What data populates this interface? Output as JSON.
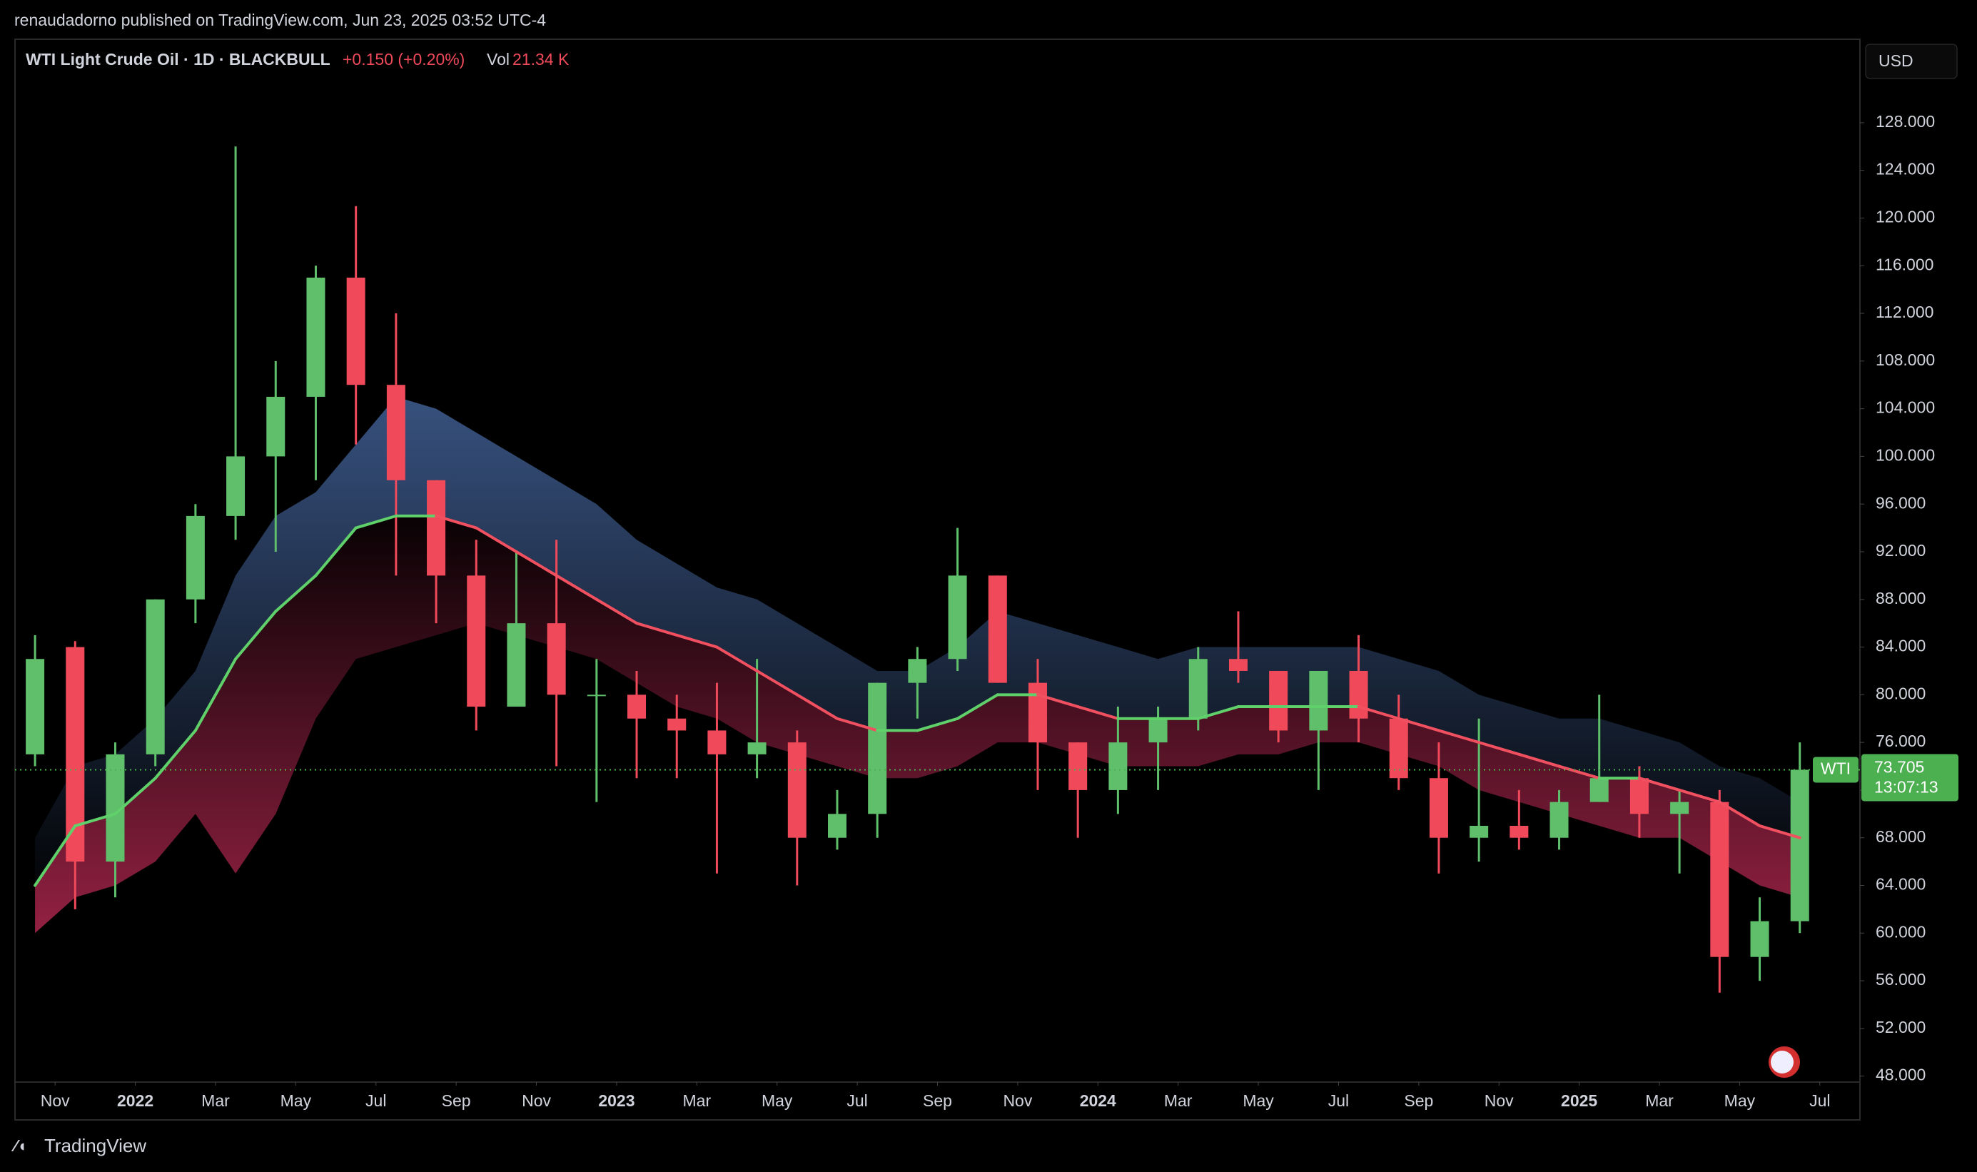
{
  "publisher": "renaudadorno published on TradingView.com, Jun 23, 2025 03:52 UTC-4",
  "footer": "TradingView",
  "chart_data": {
    "type": "candlestick",
    "title": "WTI Light Crude Oil · 1D · BLACKBULL",
    "change": "+0.150 (+0.20%)",
    "volume_label": "Vol",
    "volume": "21.34 K",
    "currency": "USD",
    "symbol": "WTI",
    "countdown": "13:07:13",
    "up_color": "#5fbf6b",
    "down_color": "#f04a5a",
    "x": [
      "2021-10",
      "2021-11",
      "2021-12",
      "2022-01",
      "2022-02",
      "2022-03",
      "2022-04",
      "2022-05",
      "2022-06",
      "2022-07",
      "2022-08",
      "2022-09",
      "2022-10",
      "2022-11",
      "2022-12",
      "2023-01",
      "2023-02",
      "2023-03",
      "2023-04",
      "2023-05",
      "2023-06",
      "2023-07",
      "2023-08",
      "2023-09",
      "2023-10",
      "2023-11",
      "2023-12",
      "2024-01",
      "2024-02",
      "2024-03",
      "2024-04",
      "2024-05",
      "2024-06",
      "2024-07",
      "2024-08",
      "2024-09",
      "2024-10",
      "2024-11",
      "2024-12",
      "2025-01",
      "2025-02",
      "2025-03",
      "2025-04",
      "2025-05",
      "2025-06"
    ],
    "open": [
      75,
      84,
      66,
      75,
      88,
      95,
      100,
      105,
      115,
      106,
      98,
      90,
      79,
      86,
      80,
      80,
      78,
      77,
      75,
      76,
      68,
      70,
      81,
      83,
      90,
      81,
      76,
      72,
      76,
      78,
      83,
      82,
      77,
      82,
      78,
      73,
      68,
      69,
      68,
      71,
      73,
      70,
      71,
      58,
      61
    ],
    "high": [
      85,
      84.5,
      76,
      88,
      96,
      126,
      108,
      116,
      121,
      112,
      98,
      93,
      92,
      93,
      83,
      82,
      80,
      81,
      83,
      77,
      72,
      81,
      84,
      94,
      90,
      83,
      76,
      79,
      79,
      84,
      87,
      82,
      82,
      85,
      80,
      76,
      78,
      72,
      72,
      80,
      74,
      72,
      72,
      63,
      76
    ],
    "low": [
      74,
      62,
      63,
      74,
      86,
      93,
      92,
      98,
      101,
      90,
      86,
      77,
      79,
      74,
      71,
      73,
      73,
      65,
      73,
      64,
      67,
      68,
      78,
      82,
      81,
      72,
      68,
      70,
      72,
      77,
      81,
      76,
      72,
      76,
      72,
      65,
      66,
      67,
      67,
      71,
      68,
      65,
      55,
      56,
      60
    ],
    "close": [
      83,
      66,
      75,
      88,
      95,
      100,
      105,
      115,
      106,
      98,
      90,
      79,
      86,
      80,
      80,
      78,
      77,
      75,
      76,
      68,
      70,
      81,
      83,
      90,
      81,
      76,
      72,
      76,
      78,
      83,
      82,
      77,
      82,
      78,
      73,
      68,
      69,
      68,
      71,
      73,
      70,
      71,
      58,
      61,
      73.705
    ],
    "ma": {
      "values": [
        64,
        69,
        70,
        73,
        77,
        83,
        87,
        90,
        94,
        95,
        95,
        94,
        92,
        90,
        88,
        86,
        85,
        84,
        82,
        80,
        78,
        77,
        77,
        78,
        80,
        80,
        79,
        78,
        78,
        78,
        79,
        79,
        79,
        79,
        78,
        77,
        76,
        75,
        74,
        73,
        73,
        72,
        71,
        69,
        68
      ],
      "rising_color": "#5fd06a",
      "falling_color": "#f0505f"
    },
    "upper_band": [
      68,
      74,
      75,
      78,
      82,
      90,
      95,
      97,
      101,
      105,
      104,
      102,
      100,
      98,
      96,
      93,
      91,
      89,
      88,
      86,
      84,
      82,
      82,
      84,
      87,
      86,
      85,
      84,
      83,
      84,
      84,
      84,
      84,
      84,
      83,
      82,
      80,
      79,
      78,
      78,
      77,
      76,
      74,
      73,
      71
    ],
    "lower_band": [
      60,
      63,
      64,
      66,
      70,
      65,
      70,
      78,
      83,
      84,
      85,
      86,
      85,
      84,
      83,
      81,
      79,
      78,
      76,
      75,
      74,
      73,
      73,
      74,
      76,
      76,
      75,
      74,
      74,
      74,
      75,
      75,
      76,
      76,
      75,
      74,
      72,
      71,
      70,
      69,
      68,
      68,
      66,
      64,
      63
    ],
    "upper_color": "#3d5a8c",
    "lower_color": "#a3244a",
    "price_color": "#4caf50",
    "grid": false,
    "xlim": [
      "2021-10",
      "2025-08"
    ],
    "xticks": [
      {
        "value": "2021-11",
        "label": "Nov"
      },
      {
        "value": "2022-01",
        "label": "2022"
      },
      {
        "value": "2022-03",
        "label": "Mar"
      },
      {
        "value": "2022-05",
        "label": "May"
      },
      {
        "value": "2022-07",
        "label": "Jul"
      },
      {
        "value": "2022-09",
        "label": "Sep"
      },
      {
        "value": "2022-11",
        "label": "Nov"
      },
      {
        "value": "2023-01",
        "label": "2023"
      },
      {
        "value": "2023-03",
        "label": "Mar"
      },
      {
        "value": "2023-05",
        "label": "May"
      },
      {
        "value": "2023-07",
        "label": "Jul"
      },
      {
        "value": "2023-09",
        "label": "Sep"
      },
      {
        "value": "2023-11",
        "label": "Nov"
      },
      {
        "value": "2024-01",
        "label": "2024"
      },
      {
        "value": "2024-03",
        "label": "Mar"
      },
      {
        "value": "2024-05",
        "label": "May"
      },
      {
        "value": "2024-07",
        "label": "Jul"
      },
      {
        "value": "2024-09",
        "label": "Sep"
      },
      {
        "value": "2024-11",
        "label": "Nov"
      },
      {
        "value": "2025-01",
        "label": "2025"
      },
      {
        "value": "2025-03",
        "label": "Mar"
      },
      {
        "value": "2025-05",
        "label": "May"
      },
      {
        "value": "2025-07",
        "label": "Jul"
      }
    ],
    "ylim": [
      47.5,
      135
    ],
    "yticks": [
      {
        "value": 48,
        "label": "48.000"
      },
      {
        "value": 52,
        "label": "52.000"
      },
      {
        "value": 56,
        "label": "56.000"
      },
      {
        "value": 60,
        "label": "60.000"
      },
      {
        "value": 64,
        "label": "64.000"
      },
      {
        "value": 68,
        "label": "68.000"
      },
      {
        "value": 72,
        "label": "72.000"
      },
      {
        "value": 76,
        "label": "76.000"
      },
      {
        "value": 80,
        "label": "80.000"
      },
      {
        "value": 84,
        "label": "84.000"
      },
      {
        "value": 88,
        "label": "88.000"
      },
      {
        "value": 92,
        "label": "92.000"
      },
      {
        "value": 96,
        "label": "96.000"
      },
      {
        "value": 100,
        "label": "100.000"
      },
      {
        "value": 104,
        "label": "104.000"
      },
      {
        "value": 108,
        "label": "108.000"
      },
      {
        "value": 112,
        "label": "112.000"
      },
      {
        "value": 116,
        "label": "116.000"
      },
      {
        "value": 120,
        "label": "120.000"
      },
      {
        "value": 124,
        "label": "124.000"
      },
      {
        "value": 128,
        "label": "128.000"
      }
    ]
  }
}
